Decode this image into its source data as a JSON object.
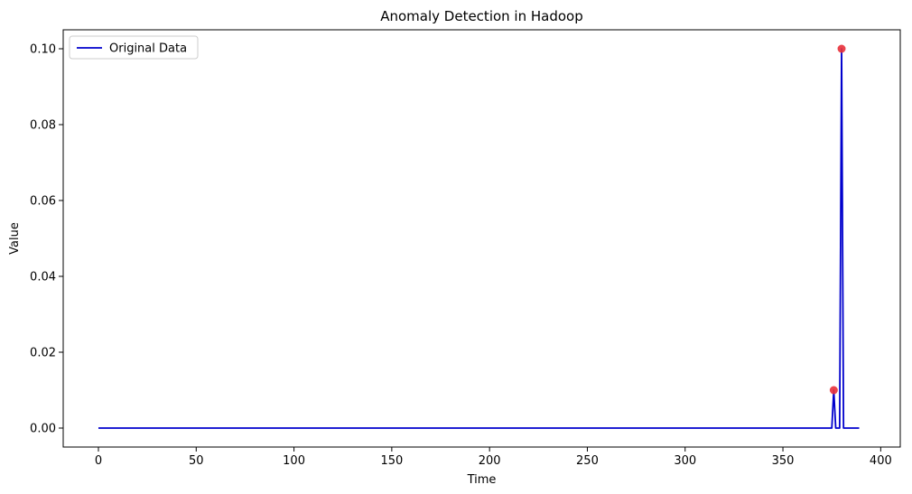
{
  "chart_data": {
    "type": "line",
    "title": "Anomaly Detection in Hadoop",
    "xlabel": "Time",
    "ylabel": "Value",
    "xlim": [
      -18,
      410
    ],
    "ylim": [
      -0.005,
      0.105
    ],
    "xticks": [
      0,
      50,
      100,
      150,
      200,
      250,
      300,
      350,
      400
    ],
    "xtick_labels": [
      "0",
      "50",
      "100",
      "150",
      "200",
      "250",
      "300",
      "350",
      "400"
    ],
    "yticks": [
      0.0,
      0.02,
      0.04,
      0.06,
      0.08,
      0.1
    ],
    "ytick_labels": [
      "0.00",
      "0.02",
      "0.04",
      "0.06",
      "0.08",
      "0.10"
    ],
    "grid": false,
    "legend_position": "top-left",
    "series": [
      {
        "name": "Original Data",
        "color": "#0000cd",
        "x": [
          0,
          375,
          376,
          377,
          378,
          379,
          380,
          381,
          382,
          389
        ],
        "y": [
          0,
          0,
          0.01,
          0,
          0,
          0,
          0.1,
          0,
          0,
          0
        ]
      }
    ],
    "anomalies": {
      "color": "#e8303a",
      "x": [
        376,
        380
      ],
      "y": [
        0.01,
        0.1
      ]
    }
  }
}
